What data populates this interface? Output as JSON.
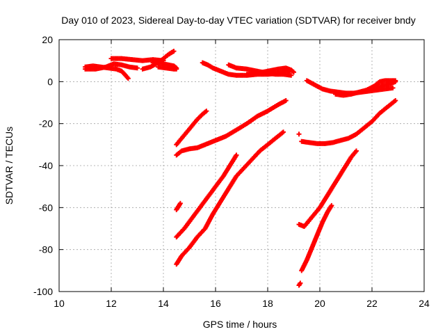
{
  "chart_data": {
    "type": "scatter",
    "title": "Day 010 of 2023, Sidereal Day-to-day VTEC variation (SDTVAR) for receiver bndy",
    "xlabel": "GPS time / hours",
    "ylabel": "SDTVAR / TECUs",
    "xlim": [
      10,
      24
    ],
    "ylim": [
      -100,
      20
    ],
    "x_ticks": [
      10,
      12,
      14,
      16,
      18,
      20,
      22,
      24
    ],
    "y_ticks": [
      -100,
      -80,
      -60,
      -40,
      -20,
      0,
      20
    ],
    "grid": true,
    "marker": "+",
    "color": "#ff0000",
    "series": [
      {
        "name": "arc-1",
        "points": [
          [
            11.0,
            7
          ],
          [
            11.3,
            7.5
          ],
          [
            11.6,
            7
          ],
          [
            11.9,
            6.5
          ],
          [
            12.2,
            6
          ],
          [
            12.4,
            5
          ],
          [
            12.55,
            3
          ],
          [
            12.65,
            1.5
          ]
        ]
      },
      {
        "name": "arc-2",
        "points": [
          [
            11.0,
            6
          ],
          [
            11.4,
            6
          ],
          [
            11.8,
            7
          ],
          [
            12.1,
            8.5
          ],
          [
            12.4,
            8
          ],
          [
            12.7,
            7
          ],
          [
            13.0,
            6.5
          ]
        ]
      },
      {
        "name": "arc-3",
        "points": [
          [
            12.0,
            11
          ],
          [
            12.4,
            11
          ],
          [
            12.8,
            10.5
          ],
          [
            13.2,
            10
          ],
          [
            13.6,
            10.5
          ],
          [
            14.0,
            10
          ]
        ]
      },
      {
        "name": "arc-4",
        "points": [
          [
            13.2,
            6
          ],
          [
            13.5,
            7
          ],
          [
            13.8,
            9
          ],
          [
            14.0,
            11
          ],
          [
            14.2,
            13
          ],
          [
            14.4,
            14.5
          ]
        ]
      },
      {
        "name": "arc-5",
        "points": [
          [
            13.6,
            9
          ],
          [
            14.0,
            8.5
          ],
          [
            14.4,
            7.5
          ],
          [
            14.5,
            6.5
          ]
        ]
      },
      {
        "name": "arc-6",
        "points": [
          [
            13.8,
            7
          ],
          [
            14.1,
            6.5
          ],
          [
            14.4,
            6
          ],
          [
            14.5,
            6
          ]
        ]
      },
      {
        "name": "arc-7",
        "points": [
          [
            15.5,
            9
          ],
          [
            15.7,
            8
          ],
          [
            15.9,
            6.5
          ],
          [
            16.2,
            5
          ],
          [
            16.5,
            3.5
          ],
          [
            16.8,
            3
          ],
          [
            17.2,
            3
          ],
          [
            17.6,
            3.5
          ],
          [
            18.0,
            3.5
          ],
          [
            18.4,
            4
          ],
          [
            18.7,
            5
          ],
          [
            18.9,
            5.5
          ]
        ]
      },
      {
        "name": "arc-8",
        "points": [
          [
            16.5,
            8
          ],
          [
            16.8,
            6.5
          ],
          [
            17.2,
            6
          ],
          [
            17.6,
            5
          ],
          [
            18.0,
            4
          ],
          [
            18.3,
            3.5
          ],
          [
            18.6,
            3.5
          ],
          [
            18.9,
            3
          ]
        ]
      },
      {
        "name": "arc-9",
        "points": [
          [
            17.2,
            3.5
          ],
          [
            17.6,
            4
          ],
          [
            18.0,
            5
          ],
          [
            18.4,
            6
          ],
          [
            18.7,
            6.5
          ],
          [
            18.9,
            5.5
          ],
          [
            19.0,
            4.5
          ]
        ]
      },
      {
        "name": "arc-10",
        "points": [
          [
            19.5,
            0.5
          ],
          [
            19.8,
            -1.5
          ],
          [
            20.1,
            -3.5
          ],
          [
            20.4,
            -4.5
          ],
          [
            20.7,
            -5
          ],
          [
            21.0,
            -5.5
          ],
          [
            21.3,
            -5.5
          ],
          [
            21.6,
            -5
          ],
          [
            21.9,
            -4.5
          ],
          [
            22.2,
            -4
          ],
          [
            22.5,
            -3.5
          ],
          [
            22.8,
            -3
          ]
        ]
      },
      {
        "name": "arc-11",
        "points": [
          [
            20.6,
            -6
          ],
          [
            20.9,
            -6.5
          ],
          [
            21.2,
            -6
          ],
          [
            21.5,
            -5
          ],
          [
            21.8,
            -4
          ],
          [
            22.1,
            -3
          ],
          [
            22.4,
            -2
          ],
          [
            22.7,
            -1
          ],
          [
            22.9,
            0
          ]
        ]
      },
      {
        "name": "arc-12",
        "points": [
          [
            21.8,
            -4
          ],
          [
            22.1,
            -2
          ],
          [
            22.3,
            0
          ],
          [
            22.5,
            0.5
          ],
          [
            22.7,
            0.5
          ],
          [
            22.9,
            0.5
          ]
        ]
      },
      {
        "name": "arc-13",
        "points": [
          [
            14.5,
            -30
          ],
          [
            14.7,
            -27
          ],
          [
            14.9,
            -24
          ],
          [
            15.1,
            -21
          ],
          [
            15.3,
            -18
          ],
          [
            15.5,
            -15.5
          ],
          [
            15.65,
            -14
          ]
        ]
      },
      {
        "name": "arc-14",
        "points": [
          [
            14.5,
            -35
          ],
          [
            14.7,
            -33
          ],
          [
            15.0,
            -32
          ],
          [
            15.3,
            -31.5
          ],
          [
            15.6,
            -30
          ],
          [
            16.0,
            -28
          ],
          [
            16.4,
            -26
          ],
          [
            16.8,
            -23
          ],
          [
            17.2,
            -20
          ],
          [
            17.6,
            -16.5
          ],
          [
            18.0,
            -14
          ],
          [
            18.4,
            -11
          ],
          [
            18.7,
            -9
          ]
        ]
      },
      {
        "name": "arc-15",
        "points": [
          [
            14.5,
            -61
          ],
          [
            14.6,
            -59
          ],
          [
            14.65,
            -58
          ]
        ]
      },
      {
        "name": "arc-16",
        "points": [
          [
            14.5,
            -74
          ],
          [
            14.8,
            -70
          ],
          [
            15.1,
            -65
          ],
          [
            15.4,
            -60
          ],
          [
            15.7,
            -55
          ],
          [
            16.0,
            -50
          ],
          [
            16.3,
            -45
          ],
          [
            16.6,
            -39
          ],
          [
            16.8,
            -35
          ]
        ]
      },
      {
        "name": "arc-17",
        "points": [
          [
            14.5,
            -87
          ],
          [
            14.7,
            -83
          ],
          [
            15.0,
            -79
          ],
          [
            15.3,
            -74
          ],
          [
            15.6,
            -70
          ],
          [
            15.9,
            -63
          ],
          [
            16.2,
            -57
          ],
          [
            16.5,
            -51
          ],
          [
            16.8,
            -45
          ],
          [
            17.1,
            -41
          ],
          [
            17.4,
            -37
          ],
          [
            17.7,
            -33
          ],
          [
            18.0,
            -30
          ],
          [
            18.3,
            -27
          ],
          [
            18.6,
            -24
          ]
        ]
      },
      {
        "name": "arc-18",
        "points": [
          [
            19.2,
            -25
          ]
        ]
      },
      {
        "name": "arc-19",
        "points": [
          [
            19.3,
            -28.5
          ],
          [
            19.6,
            -29
          ],
          [
            19.9,
            -29.5
          ],
          [
            20.2,
            -29.5
          ],
          [
            20.5,
            -29
          ],
          [
            20.8,
            -28
          ],
          [
            21.1,
            -27
          ],
          [
            21.4,
            -25
          ],
          [
            21.7,
            -22
          ],
          [
            22.0,
            -19
          ],
          [
            22.3,
            -15
          ],
          [
            22.6,
            -12
          ],
          [
            22.9,
            -9
          ]
        ]
      },
      {
        "name": "arc-20",
        "points": [
          [
            19.2,
            -68
          ],
          [
            19.4,
            -69
          ],
          [
            19.6,
            -66
          ],
          [
            19.8,
            -63
          ],
          [
            20.0,
            -60
          ],
          [
            20.2,
            -56
          ],
          [
            20.4,
            -52
          ],
          [
            20.6,
            -48
          ],
          [
            20.8,
            -44
          ],
          [
            21.0,
            -40
          ],
          [
            21.2,
            -36
          ],
          [
            21.4,
            -33
          ]
        ]
      },
      {
        "name": "arc-21",
        "points": [
          [
            19.2,
            -97
          ],
          [
            19.25,
            -96
          ]
        ]
      },
      {
        "name": "arc-22",
        "points": [
          [
            19.3,
            -90
          ],
          [
            19.5,
            -85
          ],
          [
            19.7,
            -79
          ],
          [
            19.9,
            -73
          ],
          [
            20.1,
            -67
          ],
          [
            20.3,
            -62
          ],
          [
            20.45,
            -59
          ]
        ]
      }
    ]
  }
}
